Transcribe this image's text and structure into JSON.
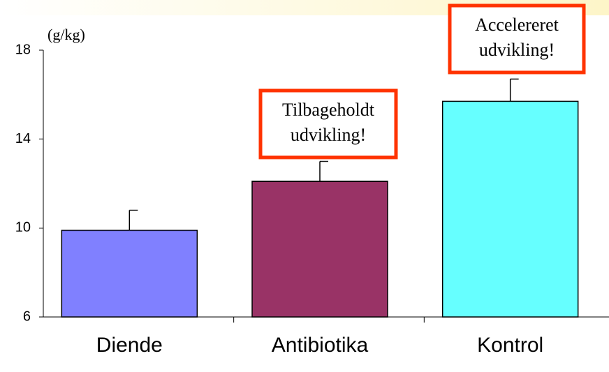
{
  "chart_data": {
    "type": "bar",
    "y_unit": "(g/kg)",
    "categories": [
      "Diende",
      "Antibiotika",
      "Kontrol"
    ],
    "values": [
      9.9,
      12.1,
      15.7
    ],
    "errors": [
      0.9,
      0.9,
      1.0
    ],
    "colors": [
      "#8080ff",
      "#993366",
      "#66ffff"
    ],
    "ylim": [
      6,
      18
    ],
    "yticks": [
      6,
      10,
      14,
      18
    ],
    "annotations": [
      {
        "lines": [
          "Tilbageholdt",
          "udvikling!"
        ]
      },
      {
        "lines": [
          "Accelereret",
          "udvikling!"
        ]
      }
    ]
  }
}
